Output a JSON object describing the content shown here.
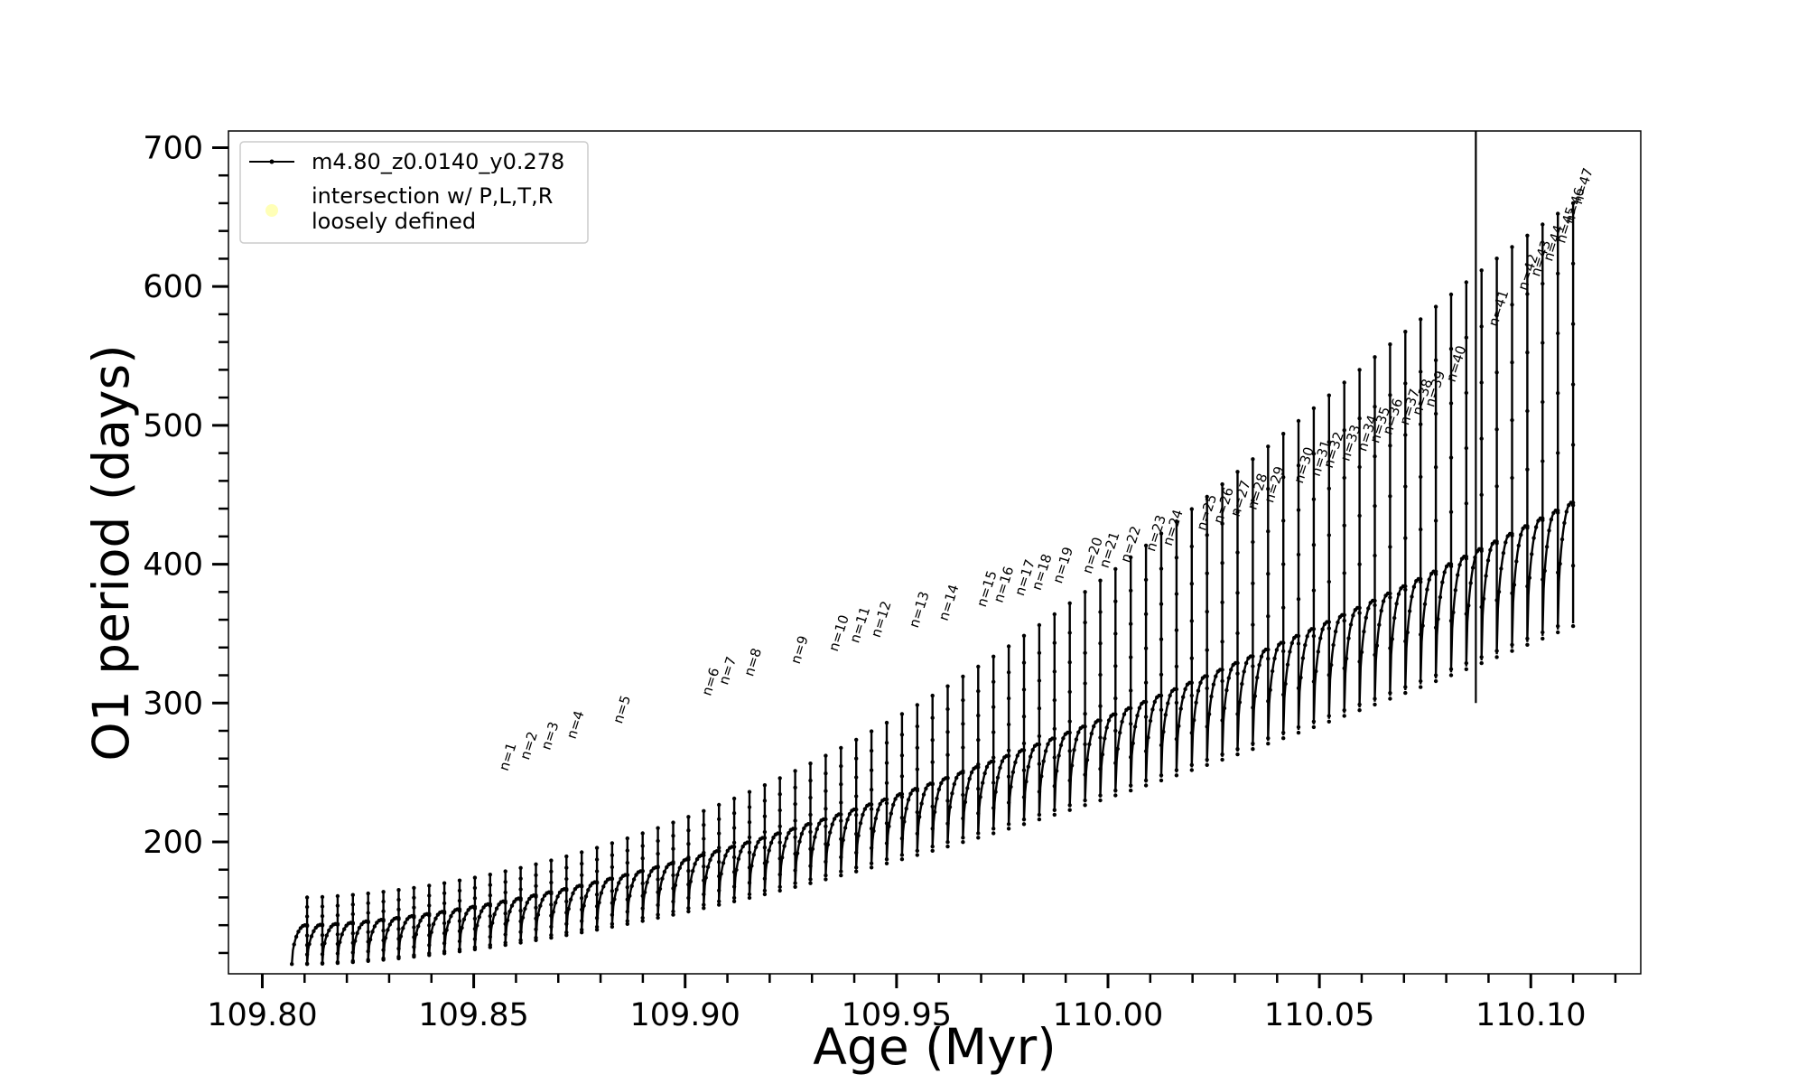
{
  "chart_data": {
    "type": "line",
    "title": "",
    "xlabel": "Age (Myr)",
    "ylabel": "O1 period (days)",
    "xlim": [
      109.792,
      110.126
    ],
    "ylim": [
      105,
      712
    ],
    "xticks": [
      "109.80",
      "109.85",
      "109.90",
      "109.95",
      "110.00",
      "110.05",
      "110.10"
    ],
    "yticks": [
      "200",
      "300",
      "400",
      "500",
      "600",
      "700"
    ],
    "grid": false,
    "legend": {
      "placement": "top-left",
      "entries": [
        {
          "label": "m4.80_z0.0140_y0.278",
          "marker": "line",
          "color": "#000000"
        },
        {
          "label": "intersection w/ P,L,T,R\nloosely defined",
          "marker": "circle",
          "color": "#ffff99"
        }
      ]
    },
    "series": [
      {
        "name": "m4.80_z0.0140_y0.278",
        "color": "#000000",
        "description_points": {
          "x_start": 109.807,
          "x_end": 110.11,
          "envelope_low_start": 112,
          "envelope_low_end": 360,
          "envelope_mid_start": 130,
          "envelope_mid_end": 440,
          "spike_max_end": 660,
          "n_cycles": 84
        }
      }
    ],
    "vertical_line_x": 110.087,
    "annotations": [
      {
        "label": "n=1",
        "x": 109.858,
        "y": 248
      },
      {
        "label": "n=2",
        "x": 109.863,
        "y": 256
      },
      {
        "label": "n=3",
        "x": 109.868,
        "y": 263
      },
      {
        "label": "n=4",
        "x": 109.874,
        "y": 271
      },
      {
        "label": "n=5",
        "x": 109.885,
        "y": 282
      },
      {
        "label": "n=6",
        "x": 109.906,
        "y": 302
      },
      {
        "label": "n=7",
        "x": 109.91,
        "y": 310
      },
      {
        "label": "n=8",
        "x": 109.916,
        "y": 316
      },
      {
        "label": "n=9",
        "x": 109.927,
        "y": 325
      },
      {
        "label": "n=10",
        "x": 109.936,
        "y": 334
      },
      {
        "label": "n=11",
        "x": 109.941,
        "y": 340
      },
      {
        "label": "n=12",
        "x": 109.946,
        "y": 344
      },
      {
        "label": "n=13",
        "x": 109.955,
        "y": 351
      },
      {
        "label": "n=14",
        "x": 109.962,
        "y": 356
      },
      {
        "label": "n=15",
        "x": 109.971,
        "y": 366
      },
      {
        "label": "n=16",
        "x": 109.975,
        "y": 369
      },
      {
        "label": "n=17",
        "x": 109.98,
        "y": 374
      },
      {
        "label": "n=18",
        "x": 109.984,
        "y": 378
      },
      {
        "label": "n=19",
        "x": 109.989,
        "y": 383
      },
      {
        "label": "n=20",
        "x": 109.996,
        "y": 390
      },
      {
        "label": "n=21",
        "x": 110.0,
        "y": 394
      },
      {
        "label": "n=22",
        "x": 110.005,
        "y": 398
      },
      {
        "label": "n=23",
        "x": 110.011,
        "y": 406
      },
      {
        "label": "n=24",
        "x": 110.015,
        "y": 410
      },
      {
        "label": "n=25",
        "x": 110.023,
        "y": 421
      },
      {
        "label": "n=26",
        "x": 110.027,
        "y": 426
      },
      {
        "label": "n=27",
        "x": 110.031,
        "y": 431
      },
      {
        "label": "n=28",
        "x": 110.035,
        "y": 436
      },
      {
        "label": "n=29",
        "x": 110.039,
        "y": 441
      },
      {
        "label": "n=30",
        "x": 110.046,
        "y": 455
      },
      {
        "label": "n=31",
        "x": 110.05,
        "y": 460
      },
      {
        "label": "n=32",
        "x": 110.053,
        "y": 466
      },
      {
        "label": "n=33",
        "x": 110.057,
        "y": 471
      },
      {
        "label": "n=34",
        "x": 110.061,
        "y": 478
      },
      {
        "label": "n=35",
        "x": 110.064,
        "y": 484
      },
      {
        "label": "n=36",
        "x": 110.067,
        "y": 490
      },
      {
        "label": "n=37",
        "x": 110.071,
        "y": 497
      },
      {
        "label": "n=38",
        "x": 110.074,
        "y": 504
      },
      {
        "label": "n=39",
        "x": 110.077,
        "y": 510
      },
      {
        "label": "n=40",
        "x": 110.082,
        "y": 528
      },
      {
        "label": "n=41",
        "x": 110.092,
        "y": 568
      },
      {
        "label": "n=42",
        "x": 110.099,
        "y": 594
      },
      {
        "label": "n=43",
        "x": 110.102,
        "y": 604
      },
      {
        "label": "n=44",
        "x": 110.105,
        "y": 615
      },
      {
        "label": "n=45",
        "x": 110.108,
        "y": 628
      },
      {
        "label": "n=46",
        "x": 110.11,
        "y": 642
      },
      {
        "label": "n=47",
        "x": 110.112,
        "y": 656
      }
    ]
  }
}
